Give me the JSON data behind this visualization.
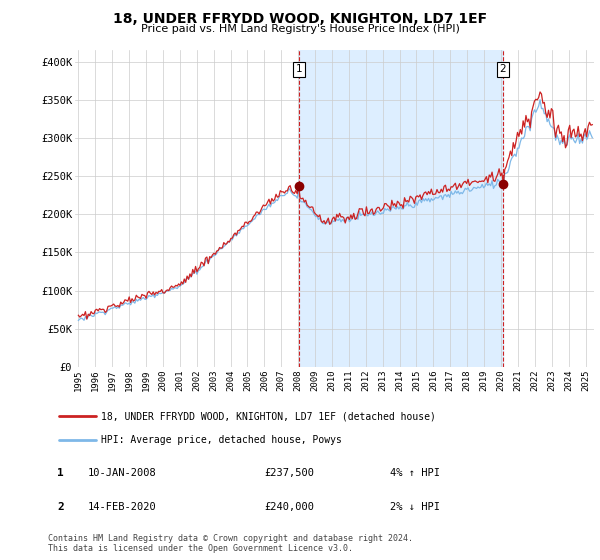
{
  "title": "18, UNDER FFRYDD WOOD, KNIGHTON, LD7 1EF",
  "subtitle": "Price paid vs. HM Land Registry's House Price Index (HPI)",
  "ylabel_ticks": [
    "£0",
    "£50K",
    "£100K",
    "£150K",
    "£200K",
    "£250K",
    "£300K",
    "£350K",
    "£400K"
  ],
  "ytick_vals": [
    0,
    50000,
    100000,
    150000,
    200000,
    250000,
    300000,
    350000,
    400000
  ],
  "ylim": [
    0,
    415000
  ],
  "xlim_start": 1994.8,
  "xlim_end": 2025.5,
  "xtick_years": [
    1995,
    1996,
    1997,
    1998,
    1999,
    2000,
    2001,
    2002,
    2003,
    2004,
    2005,
    2006,
    2007,
    2008,
    2009,
    2010,
    2011,
    2012,
    2013,
    2014,
    2015,
    2016,
    2017,
    2018,
    2019,
    2020,
    2021,
    2022,
    2023,
    2024,
    2025
  ],
  "sale1_x": 2008.03,
  "sale1_y": 237500,
  "sale1_label": "1",
  "sale2_x": 2020.12,
  "sale2_y": 240000,
  "sale2_label": "2",
  "vline1_x": 2008.03,
  "vline2_x": 2020.12,
  "legend_line1": "18, UNDER FFRYDD WOOD, KNIGHTON, LD7 1EF (detached house)",
  "legend_line2": "HPI: Average price, detached house, Powys",
  "note1_label": "1",
  "note1_date": "10-JAN-2008",
  "note1_price": "£237,500",
  "note1_hpi": "4% ↑ HPI",
  "note2_label": "2",
  "note2_date": "14-FEB-2020",
  "note2_price": "£240,000",
  "note2_hpi": "2% ↓ HPI",
  "footer": "Contains HM Land Registry data © Crown copyright and database right 2024.\nThis data is licensed under the Open Government Licence v3.0.",
  "hpi_color": "#7eb8e8",
  "sale_color": "#cc2222",
  "marker_color": "#8b0000",
  "vline_color": "#cc2222",
  "shade_color": "#ddeeff",
  "background_color": "#ffffff",
  "grid_color": "#cccccc"
}
